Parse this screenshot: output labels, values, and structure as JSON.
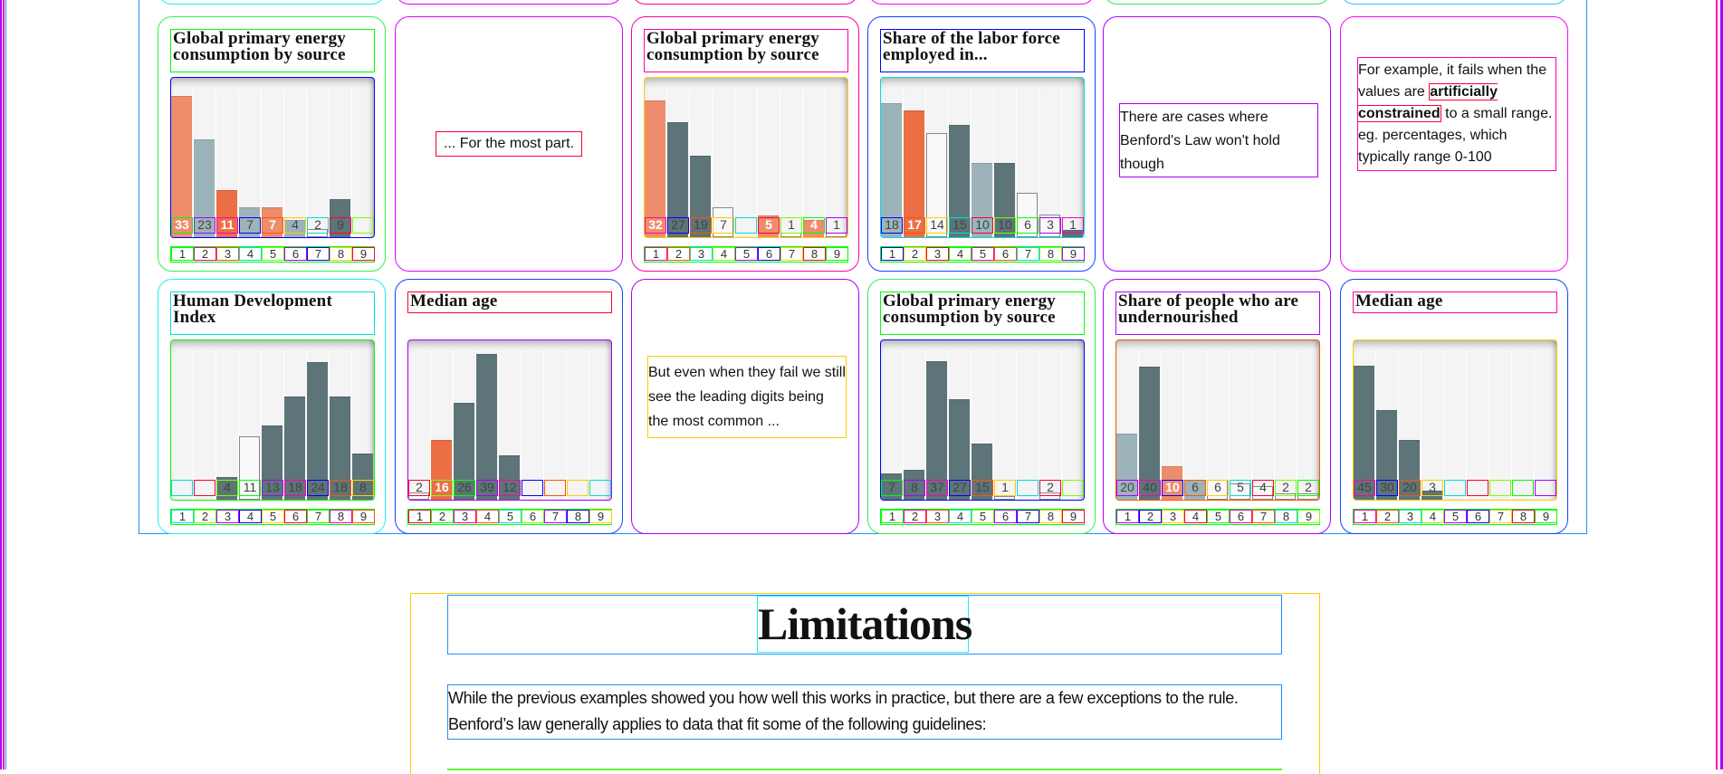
{
  "colors": {
    "salmon": "#ee8d6b",
    "orange": "#ec6e45",
    "light": "#9cb4b9",
    "dark": "#5d7478",
    "white": "#f9f9f9"
  },
  "cards": [
    {
      "type": "chart",
      "chart": 0
    },
    {
      "type": "text",
      "text": "... For the most part."
    },
    {
      "type": "chart",
      "chart": 1
    },
    {
      "type": "chart",
      "chart": 2
    },
    {
      "type": "text",
      "text": "There are cases where Benford's Law won't hold though"
    },
    {
      "type": "text",
      "pre": "For example, it fails when the values are ",
      "bold": "artificially constrained",
      "post": " to a small range. eg. percentages, which typically range 0-100"
    },
    {
      "type": "chart",
      "chart": 3
    },
    {
      "type": "chart",
      "chart": 4
    },
    {
      "type": "text",
      "text": "But even when they fail we still see the leading digits being the most common ..."
    },
    {
      "type": "chart",
      "chart": 5
    },
    {
      "type": "chart",
      "chart": 6
    },
    {
      "type": "chart",
      "chart": 7
    }
  ],
  "chart_data": [
    {
      "type": "bar",
      "title": "Global primary energy consumption by source",
      "categories": [
        "1",
        "2",
        "3",
        "4",
        "5",
        "6",
        "7",
        "8",
        "9"
      ],
      "values": [
        33,
        23,
        11,
        7,
        7,
        4,
        2,
        9,
        null
      ],
      "bar_colors": [
        "salmon",
        "light",
        "orange",
        "light",
        "salmon",
        "light",
        "white",
        "dark",
        null
      ],
      "ylim": [
        0,
        35
      ]
    },
    {
      "type": "bar",
      "title": "Global primary energy consumption by source",
      "categories": [
        "1",
        "2",
        "3",
        "4",
        "5",
        "6",
        "7",
        "8",
        "9"
      ],
      "values": [
        32,
        27,
        19,
        7,
        null,
        5,
        1,
        4,
        1
      ],
      "bar_colors": [
        "salmon",
        "dark",
        "dark",
        "white",
        null,
        "salmon",
        "white",
        "salmon",
        "white"
      ],
      "ylim": [
        0,
        35
      ]
    },
    {
      "type": "bar",
      "title": "Share of the labor force employed in...",
      "categories": [
        "1",
        "2",
        "3",
        "4",
        "5",
        "6",
        "7",
        "8",
        "9"
      ],
      "values": [
        18,
        17,
        14,
        15,
        10,
        10,
        6,
        3,
        1
      ],
      "bar_colors": [
        "light",
        "orange",
        "white",
        "dark",
        "light",
        "dark",
        "white",
        "white",
        "dark"
      ],
      "ylim": [
        0,
        20
      ]
    },
    {
      "type": "bar",
      "title": "Human Development Index",
      "categories": [
        "1",
        "2",
        "3",
        "4",
        "5",
        "6",
        "7",
        "8",
        "9"
      ],
      "values": [
        null,
        null,
        4,
        11,
        13,
        18,
        24,
        18,
        8
      ],
      "bar_colors": [
        null,
        null,
        "dark",
        "white",
        "dark",
        "dark",
        "dark",
        "dark",
        "dark"
      ],
      "ylim": [
        0,
        26
      ]
    },
    {
      "type": "bar",
      "title": "Median age",
      "categories": [
        "1",
        "2",
        "3",
        "4",
        "5",
        "6",
        "7",
        "8",
        "9"
      ],
      "values": [
        2,
        16,
        26,
        39,
        12,
        null,
        null,
        null,
        null
      ],
      "bar_colors": [
        "white",
        "orange",
        "dark",
        "dark",
        "dark",
        null,
        null,
        null,
        null
      ],
      "ylim": [
        0,
        40
      ]
    },
    {
      "type": "bar",
      "title": "Global primary energy consumption by source",
      "categories": [
        "1",
        "2",
        "3",
        "4",
        "5",
        "6",
        "7",
        "8",
        "9"
      ],
      "values": [
        7,
        8,
        37,
        27,
        15,
        1,
        null,
        2,
        null
      ],
      "bar_colors": [
        "dark",
        "dark",
        "dark",
        "dark",
        "dark",
        "white",
        null,
        "white",
        null
      ],
      "ylim": [
        0,
        40
      ]
    },
    {
      "type": "bar",
      "title": "Share of people who are undernourished",
      "categories": [
        "1",
        "2",
        "3",
        "4",
        "5",
        "6",
        "7",
        "8",
        "9"
      ],
      "values": [
        20,
        40,
        10,
        6,
        6,
        5,
        4,
        2,
        2
      ],
      "bar_colors": [
        "light",
        "dark",
        "salmon",
        "light",
        "white",
        "white",
        "white",
        "white",
        "white"
      ],
      "ylim": [
        0,
        45
      ]
    },
    {
      "type": "bar",
      "title": "Median age",
      "categories": [
        "1",
        "2",
        "3",
        "4",
        "5",
        "6",
        "7",
        "8",
        "9"
      ],
      "values": [
        45,
        30,
        20,
        3,
        null,
        null,
        null,
        null,
        null
      ],
      "bar_colors": [
        "dark",
        "dark",
        "dark",
        "dark",
        null,
        null,
        null,
        null,
        null
      ],
      "ylim": [
        0,
        50
      ]
    }
  ],
  "limitations": {
    "heading": "Limitations",
    "paragraph": "While the previous examples showed you how well this works in practice, but there are a few exceptions to the rule. Benford’s law generally applies to data that fit some of the following guidelines:"
  }
}
